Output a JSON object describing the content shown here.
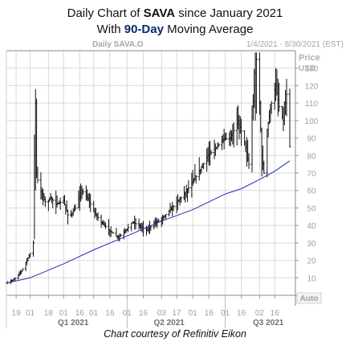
{
  "title": {
    "line1_prefix": "Daily Chart of ",
    "line1_ticker": "SAVA",
    "line1_suffix": " since January 2021",
    "line2_prefix": "With ",
    "line2_highlight": "90-Day",
    "line2_suffix": " Moving Average"
  },
  "credit": "Chart courtesy of Refinitiv Eikon",
  "chart_data": {
    "type": "bar",
    "subtype": "ohlc",
    "instrument_label": "Daily SAVA.O",
    "date_range_label": "1/4/2021 - 8/30/2021 (EST)",
    "price_label": "Price",
    "currency_label": "USD",
    "auto_label": "Auto",
    "ylim": [
      0,
      140
    ],
    "y_ticks": [
      10,
      20,
      30,
      40,
      50,
      60,
      70,
      80,
      90,
      100,
      110,
      120,
      130
    ],
    "x_ticks": [
      {
        "label": "19",
        "date": "2020-12-19"
      },
      {
        "label": "01",
        "date": "2021-01-01"
      },
      {
        "label": "18",
        "date": "2021-01-18"
      },
      {
        "label": "01",
        "date": "2021-02-01"
      },
      {
        "label": "16",
        "date": "2021-02-16"
      },
      {
        "label": "01",
        "date": "2021-03-01"
      },
      {
        "label": "16",
        "date": "2021-03-16"
      },
      {
        "label": "01",
        "date": "2021-04-01"
      },
      {
        "label": "16",
        "date": "2021-04-16"
      },
      {
        "label": "03",
        "date": "2021-05-03"
      },
      {
        "label": "17",
        "date": "2021-05-17"
      },
      {
        "label": "01",
        "date": "2021-06-01"
      },
      {
        "label": "16",
        "date": "2021-06-16"
      },
      {
        "label": "01",
        "date": "2021-07-01"
      },
      {
        "label": "16",
        "date": "2021-07-16"
      },
      {
        "label": "02",
        "date": "2021-08-02"
      },
      {
        "label": "16",
        "date": "2021-08-16"
      }
    ],
    "quarter_labels": [
      {
        "label": "Q1 2021",
        "date": "2021-02-10"
      },
      {
        "label": "Q2 2021",
        "date": "2021-05-10"
      },
      {
        "label": "Q3 2021",
        "date": "2021-08-10"
      }
    ],
    "price_anchors": [
      [
        "2020-12-10",
        7
      ],
      [
        "2020-12-17",
        9
      ],
      [
        "2020-12-24",
        14
      ],
      [
        "2020-12-29",
        20
      ],
      [
        "2021-01-01",
        24
      ],
      [
        "2021-01-04",
        30
      ],
      [
        "2021-01-05",
        80
      ],
      [
        "2021-01-06",
        110
      ],
      [
        "2021-01-07",
        70
      ],
      [
        "2021-01-09",
        62
      ],
      [
        "2021-01-12",
        58
      ],
      [
        "2021-01-16",
        52
      ],
      [
        "2021-01-20",
        56
      ],
      [
        "2021-01-25",
        52
      ],
      [
        "2021-02-01",
        54
      ],
      [
        "2021-02-06",
        44
      ],
      [
        "2021-02-12",
        50
      ],
      [
        "2021-02-18",
        60
      ],
      [
        "2021-02-24",
        55
      ],
      [
        "2021-03-01",
        48
      ],
      [
        "2021-03-08",
        42
      ],
      [
        "2021-03-16",
        37
      ],
      [
        "2021-03-24",
        33
      ],
      [
        "2021-04-01",
        38
      ],
      [
        "2021-04-06",
        42
      ],
      [
        "2021-04-12",
        40
      ],
      [
        "2021-04-19",
        37
      ],
      [
        "2021-04-26",
        41
      ],
      [
        "2021-05-03",
        44
      ],
      [
        "2021-05-10",
        48
      ],
      [
        "2021-05-17",
        53
      ],
      [
        "2021-05-24",
        58
      ],
      [
        "2021-06-01",
        65
      ],
      [
        "2021-06-08",
        72
      ],
      [
        "2021-06-15",
        80
      ],
      [
        "2021-06-22",
        84
      ],
      [
        "2021-06-29",
        89
      ],
      [
        "2021-07-06",
        90
      ],
      [
        "2021-07-13",
        100
      ],
      [
        "2021-07-19",
        88
      ],
      [
        "2021-07-23",
        75
      ],
      [
        "2021-07-28",
        120
      ],
      [
        "2021-07-30",
        135
      ],
      [
        "2021-08-02",
        110
      ],
      [
        "2021-08-04",
        80
      ],
      [
        "2021-08-06",
        70
      ],
      [
        "2021-08-09",
        95
      ],
      [
        "2021-08-13",
        110
      ],
      [
        "2021-08-17",
        120
      ],
      [
        "2021-08-20",
        108
      ],
      [
        "2021-08-24",
        100
      ],
      [
        "2021-08-27",
        115
      ],
      [
        "2021-08-30",
        85
      ]
    ],
    "series": [
      {
        "style": "line",
        "color": "#1f2fb0",
        "points": [
          [
            "2020-12-10",
            7
          ],
          [
            "2021-01-01",
            10
          ],
          [
            "2021-02-01",
            18
          ],
          [
            "2021-03-01",
            26
          ],
          [
            "2021-04-01",
            34
          ],
          [
            "2021-05-01",
            42
          ],
          [
            "2021-06-01",
            49
          ],
          [
            "2021-07-01",
            58
          ],
          [
            "2021-07-16",
            61
          ],
          [
            "2021-08-01",
            66
          ],
          [
            "2021-08-16",
            71
          ],
          [
            "2021-08-30",
            77
          ]
        ]
      }
    ],
    "colors": {
      "bars": "#111111",
      "moving_average": "#1f2fb0",
      "grid": "#d9d9d9",
      "axis_text": "#a0a0a0"
    },
    "grid": true
  }
}
